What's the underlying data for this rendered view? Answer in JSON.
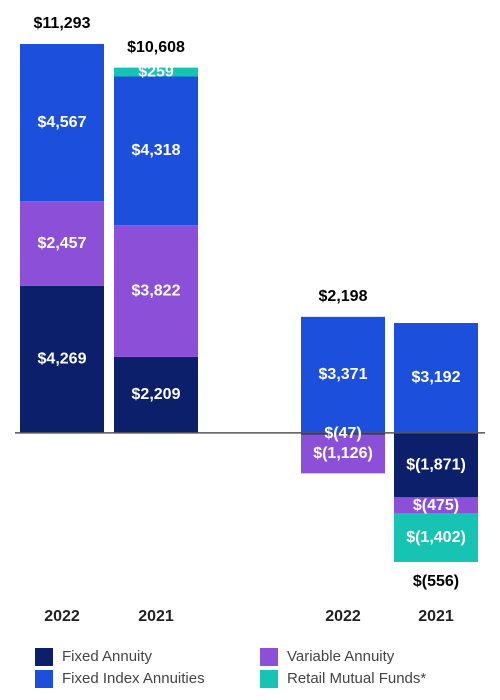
{
  "chart_data": {
    "type": "stacked_bar",
    "categories": [
      "2022",
      "2021",
      "2022",
      "2021"
    ],
    "series": [
      {
        "name": "Fixed Annuity",
        "color": "#0b1f6b",
        "values": [
          4269,
          2209,
          -47,
          -1871
        ],
        "value_labels": [
          "$4,269",
          "$2,209",
          "$(47)",
          "$(1,871)"
        ]
      },
      {
        "name": "Variable Annuity",
        "color": "#8b4fd8",
        "values": [
          2457,
          3822,
          -1126,
          -475
        ],
        "value_labels": [
          "$2,457",
          "$3,822",
          "$(1,126)",
          "$(475)"
        ]
      },
      {
        "name": "Fixed Index Annuities",
        "color": "#1c4fdc",
        "values": [
          4567,
          4318,
          3371,
          3192
        ],
        "value_labels": [
          "$4,567",
          "$4,318",
          "$3,371",
          "$3,192"
        ]
      },
      {
        "name": "Retail Mutual Funds*",
        "color": "#17c3b2",
        "values": [
          null,
          259,
          null,
          -1402
        ],
        "value_labels": [
          null,
          "$259",
          null,
          "$(1,402)"
        ]
      }
    ],
    "totals": {
      "values": [
        11293,
        10608,
        2198,
        -556
      ],
      "value_labels": [
        "$11,293",
        "$10,608",
        "$2,198",
        "$(556)"
      ]
    },
    "legend": "bottom"
  }
}
